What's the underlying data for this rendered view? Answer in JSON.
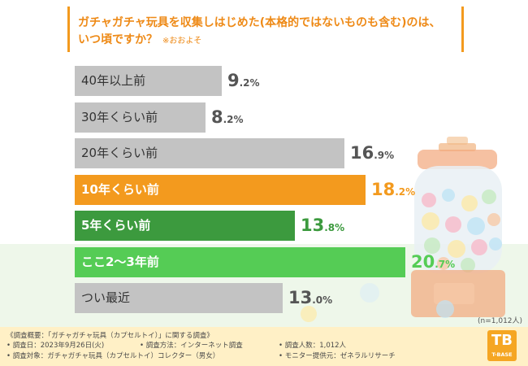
{
  "title": {
    "line1": "ガチャガチャ玩具を収集しはじめた(本格的ではないものも含む)のは、",
    "line2": "いつ頃ですか？",
    "note": "※おおよそ"
  },
  "chart_data": {
    "type": "bar",
    "orientation": "horizontal",
    "title": "ガチャガチャ玩具を収集しはじめた(本格的ではないものも含む)のは、いつ頃ですか？",
    "categories": [
      "40年以上前",
      "30年くらい前",
      "20年くらい前",
      "10年くらい前",
      "5年くらい前",
      "ここ2〜3年前",
      "つい最近"
    ],
    "values": [
      9.2,
      8.2,
      16.9,
      18.2,
      13.8,
      20.7,
      13.0
    ],
    "value_labels": [
      {
        "int": "9",
        "dec": ".2%"
      },
      {
        "int": "8",
        "dec": ".2%"
      },
      {
        "int": "16",
        "dec": ".9%"
      },
      {
        "int": "18",
        "dec": ".2%"
      },
      {
        "int": "13",
        "dec": ".8%"
      },
      {
        "int": "20",
        "dec": ".7%"
      },
      {
        "int": "13",
        "dec": ".0%"
      }
    ],
    "bar_colors": [
      "#c3c3c3",
      "#c3c3c3",
      "#c3c3c3",
      "#f39a1e",
      "#3c9a3e",
      "#55cc55",
      "#c3c3c3"
    ],
    "label_colors": [
      "#333333",
      "#333333",
      "#333333",
      "#ffffff",
      "#ffffff",
      "#ffffff",
      "#333333"
    ],
    "value_colors": [
      "#555555",
      "#555555",
      "#555555",
      "#f39a1e",
      "#3c9a3e",
      "#55cc55",
      "#555555"
    ],
    "xlim": [
      0,
      20.7
    ],
    "unit": "%"
  },
  "sample_note": "(n=1,012人)",
  "footer": {
    "survey_overview": "《調査概要：「ガチャガチャ玩具（カプセルトイ）」に関する調査》",
    "survey_date": "• 調査日：2023年9月26日(火)",
    "survey_method": "• 調査方法：インターネット調査",
    "survey_count": "• 調査人数：1,012人",
    "survey_target": "• 調査対象：ガチャガチャ玩具（カプセルトイ）コレクター（男女）",
    "monitor": "• モニター提供元：ゼネラルリサーチ"
  },
  "logo": {
    "mark": "TB",
    "text": "T-BASE"
  }
}
